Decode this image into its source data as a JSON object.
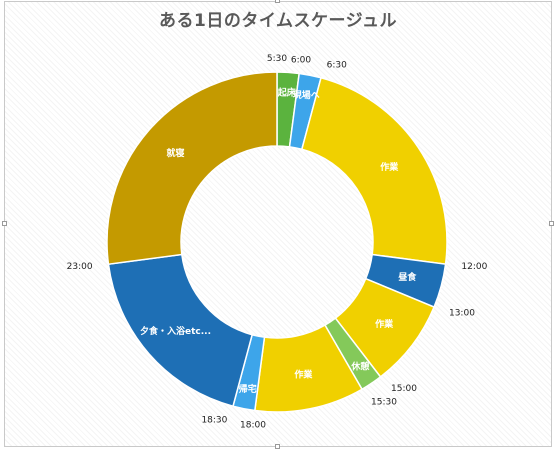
{
  "chart_data": {
    "type": "pie",
    "subtype": "doughnut",
    "title": "ある1日のタイムスケージュル",
    "start_time": "5:30",
    "slices": [
      {
        "label": "起床",
        "start": "5:30",
        "end": "6:00",
        "color": "#5bb33e"
      },
      {
        "label": "現場へ",
        "start": "6:00",
        "end": "6:30",
        "color": "#3da5ea"
      },
      {
        "label": "作業",
        "start": "6:30",
        "end": "12:00",
        "color": "#f0d000"
      },
      {
        "label": "昼食",
        "start": "12:00",
        "end": "13:00",
        "color": "#1e6fb5"
      },
      {
        "label": "作業",
        "start": "13:00",
        "end": "15:00",
        "color": "#f0d000"
      },
      {
        "label": "休憩",
        "start": "15:00",
        "end": "15:30",
        "color": "#84c95a"
      },
      {
        "label": "作業",
        "start": "15:30",
        "end": "18:00",
        "color": "#f0d000"
      },
      {
        "label": "帰宅",
        "start": "18:00",
        "end": "18:30",
        "color": "#3da5ea"
      },
      {
        "label": "夕食・入浴etc...",
        "start": "18:30",
        "end": "23:00",
        "color": "#1e6fb5"
      },
      {
        "label": "就寝",
        "start": "23:00",
        "end": "5:30",
        "color": "#c49a00"
      }
    ],
    "time_labels": [
      "5:30",
      "6:00",
      "6:30",
      "12:00",
      "13:00",
      "15:00",
      "15:30",
      "18:00",
      "18:30",
      "23:00"
    ]
  }
}
